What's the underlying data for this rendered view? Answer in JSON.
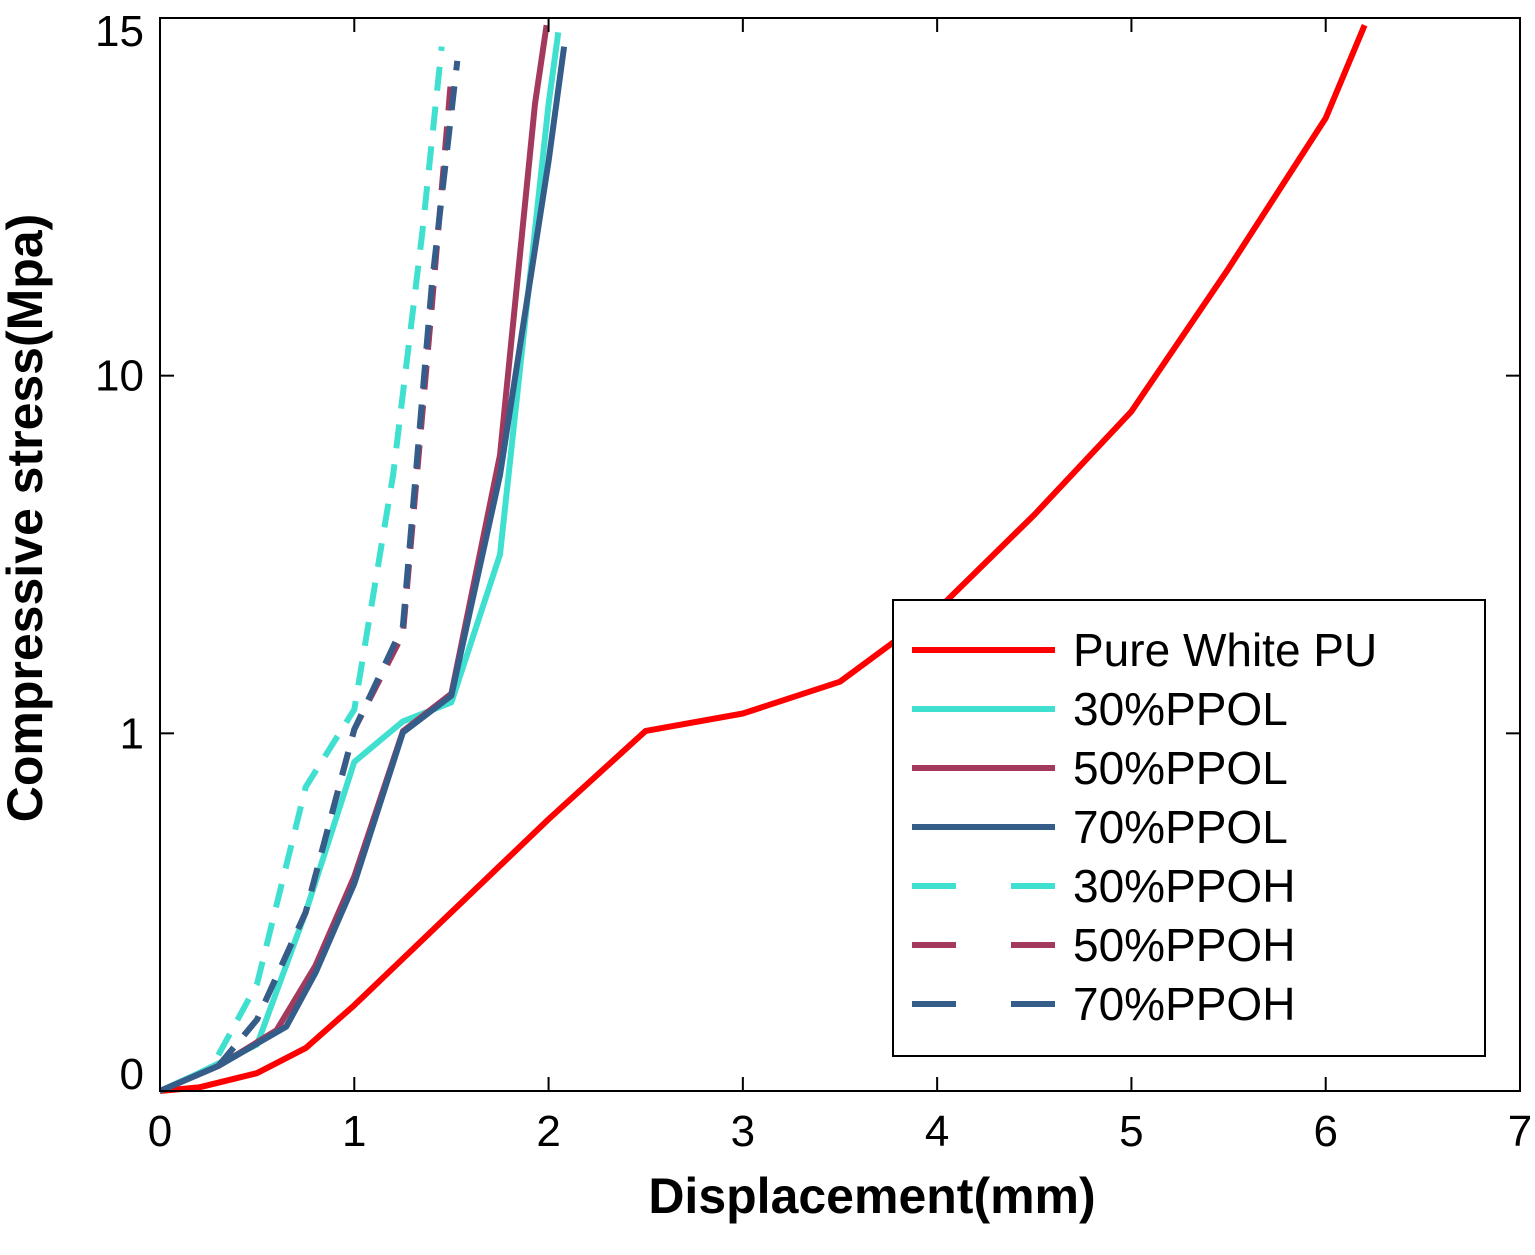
{
  "chart_data": {
    "type": "line",
    "xlabel": "Displacement(mm)",
    "ylabel": "Compressive stress(Mpa)",
    "xlim": [
      0,
      7
    ],
    "ylim": [
      0,
      15
    ],
    "y_scale": "piecewise",
    "y_segments": [
      [
        0,
        0
      ],
      [
        1,
        1
      ],
      [
        10,
        2
      ],
      [
        15,
        3
      ]
    ],
    "xticks": [
      0,
      1,
      2,
      3,
      4,
      5,
      6,
      7
    ],
    "xtick_labels": [
      "0",
      "1",
      "2",
      "3",
      "4",
      "5",
      "6",
      "7"
    ],
    "yticks": [
      0,
      1,
      10,
      15
    ],
    "ytick_labels": [
      "0",
      "1",
      "10",
      "15"
    ],
    "grid": false,
    "legend_position": "bottom-right",
    "series": [
      {
        "name": "Pure White PU",
        "color": "#ff0000",
        "dash": "solid",
        "points": [
          [
            0.0,
            0.0
          ],
          [
            0.2,
            0.01
          ],
          [
            0.5,
            0.05
          ],
          [
            0.75,
            0.12
          ],
          [
            1.0,
            0.24
          ],
          [
            1.5,
            0.5
          ],
          [
            2.0,
            0.76
          ],
          [
            2.5,
            1.06
          ],
          [
            3.0,
            1.5
          ],
          [
            3.5,
            2.3
          ],
          [
            4.0,
            4.1
          ],
          [
            4.5,
            6.5
          ],
          [
            5.0,
            9.1
          ],
          [
            5.5,
            11.5
          ],
          [
            6.0,
            13.6
          ],
          [
            6.2,
            14.9
          ]
        ]
      },
      {
        "name": "30%PPOL",
        "color": "#40e0d0",
        "dash": "solid",
        "points": [
          [
            0.0,
            0.0
          ],
          [
            0.2,
            0.05
          ],
          [
            0.5,
            0.13
          ],
          [
            0.75,
            0.5
          ],
          [
            1.0,
            0.92
          ],
          [
            1.25,
            1.3
          ],
          [
            1.5,
            1.78
          ],
          [
            1.75,
            5.5
          ],
          [
            2.0,
            13.8
          ],
          [
            2.05,
            14.8
          ]
        ]
      },
      {
        "name": "50%PPOL",
        "color": "#a33a5e",
        "dash": "solid",
        "points": [
          [
            0.0,
            0.0
          ],
          [
            0.3,
            0.07
          ],
          [
            0.6,
            0.17
          ],
          [
            0.8,
            0.35
          ],
          [
            1.0,
            0.6
          ],
          [
            1.25,
            1.05
          ],
          [
            1.5,
            2.0
          ],
          [
            1.75,
            8.0
          ],
          [
            1.93,
            13.8
          ],
          [
            1.99,
            14.9
          ]
        ]
      },
      {
        "name": "70%PPOL",
        "color": "#355d8a",
        "dash": "solid",
        "points": [
          [
            0.0,
            0.0
          ],
          [
            0.3,
            0.07
          ],
          [
            0.65,
            0.18
          ],
          [
            0.8,
            0.33
          ],
          [
            1.0,
            0.58
          ],
          [
            1.25,
            1.02
          ],
          [
            1.5,
            1.95
          ],
          [
            1.75,
            7.5
          ],
          [
            2.0,
            13.0
          ],
          [
            2.08,
            14.6
          ]
        ]
      },
      {
        "name": "30%PPOH",
        "color": "#40e0d0",
        "dash": "dashed",
        "points": [
          [
            0.3,
            0.1
          ],
          [
            0.5,
            0.3
          ],
          [
            0.75,
            0.85
          ],
          [
            1.0,
            1.6
          ],
          [
            1.2,
            7.5
          ],
          [
            1.35,
            12.0
          ],
          [
            1.45,
            14.6
          ]
        ]
      },
      {
        "name": "50%PPOH",
        "color": "#a33a5e",
        "dash": "dashed",
        "points": [
          [
            0.3,
            0.07
          ],
          [
            0.5,
            0.2
          ],
          [
            0.75,
            0.5
          ],
          [
            1.0,
            1.1
          ],
          [
            1.25,
            3.5
          ],
          [
            1.4,
            11.0
          ],
          [
            1.5,
            14.2
          ]
        ]
      },
      {
        "name": "70%PPOH",
        "color": "#355d8a",
        "dash": "dashed",
        "points": [
          [
            0.3,
            0.07
          ],
          [
            0.5,
            0.2
          ],
          [
            0.75,
            0.5
          ],
          [
            1.0,
            1.1
          ],
          [
            1.25,
            3.7
          ],
          [
            1.4,
            11.3
          ],
          [
            1.53,
            14.4
          ]
        ]
      }
    ]
  }
}
